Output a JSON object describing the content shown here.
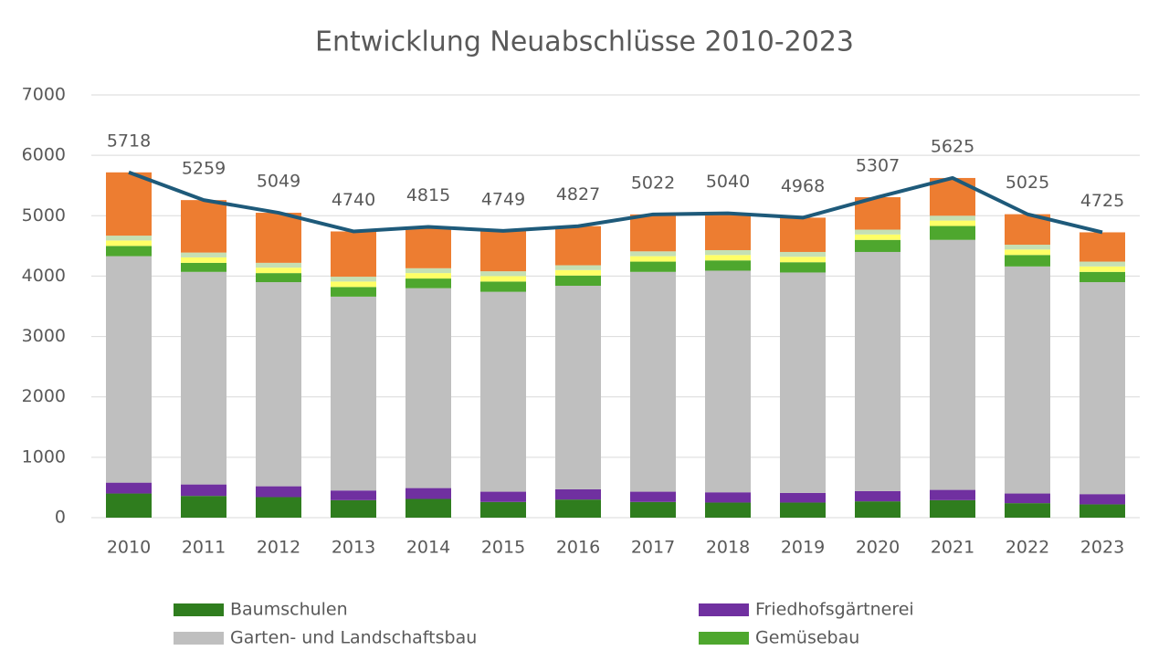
{
  "chart_data": {
    "type": "bar",
    "title": "Entwicklung Neuabschlüsse 2010-2023",
    "categories": [
      "2010",
      "2011",
      "2012",
      "2013",
      "2014",
      "2015",
      "2016",
      "2017",
      "2018",
      "2019",
      "2020",
      "2021",
      "2022",
      "2023"
    ],
    "stacked": true,
    "series": [
      {
        "name": "Baumschulen",
        "color": "#2f7d1e",
        "values": [
          400,
          360,
          340,
          290,
          310,
          260,
          300,
          260,
          250,
          250,
          270,
          290,
          240,
          220
        ]
      },
      {
        "name": "Friedhofsgärtnerei",
        "color": "#7030a0",
        "values": [
          180,
          190,
          180,
          160,
          180,
          170,
          170,
          170,
          170,
          160,
          170,
          170,
          160,
          170
        ]
      },
      {
        "name": "Garten- und Landschaftsbau",
        "color": "#bfbfbf",
        "values": [
          3750,
          3520,
          3380,
          3210,
          3310,
          3310,
          3370,
          3640,
          3670,
          3650,
          3960,
          4140,
          3760,
          3510
        ]
      },
      {
        "name": "Gemüsebau",
        "color": "#4ea72e",
        "values": [
          170,
          150,
          150,
          160,
          160,
          170,
          170,
          170,
          170,
          170,
          200,
          230,
          190,
          170
        ]
      },
      {
        "color": "#ffff66",
        "values": [
          90,
          90,
          90,
          90,
          90,
          90,
          90,
          90,
          90,
          90,
          90,
          90,
          90,
          90
        ]
      },
      {
        "color": "#c5e0b4",
        "values": [
          80,
          80,
          80,
          80,
          80,
          80,
          80,
          80,
          80,
          80,
          80,
          80,
          80,
          80
        ]
      },
      {
        "color": "#ed7d31",
        "values": [
          1048,
          869,
          829,
          750,
          685,
          669,
          647,
          612,
          610,
          568,
          537,
          625,
          505,
          485
        ]
      }
    ],
    "line": {
      "type": "line",
      "color": "#1e5a7a",
      "values": [
        5718,
        5259,
        5049,
        4740,
        4815,
        4749,
        4827,
        5022,
        5040,
        4968,
        5307,
        5625,
        5025,
        4725
      ]
    },
    "ylim": [
      0,
      7000
    ],
    "yticks": [
      0,
      1000,
      2000,
      3000,
      4000,
      5000,
      6000,
      7000
    ],
    "grid": true
  }
}
